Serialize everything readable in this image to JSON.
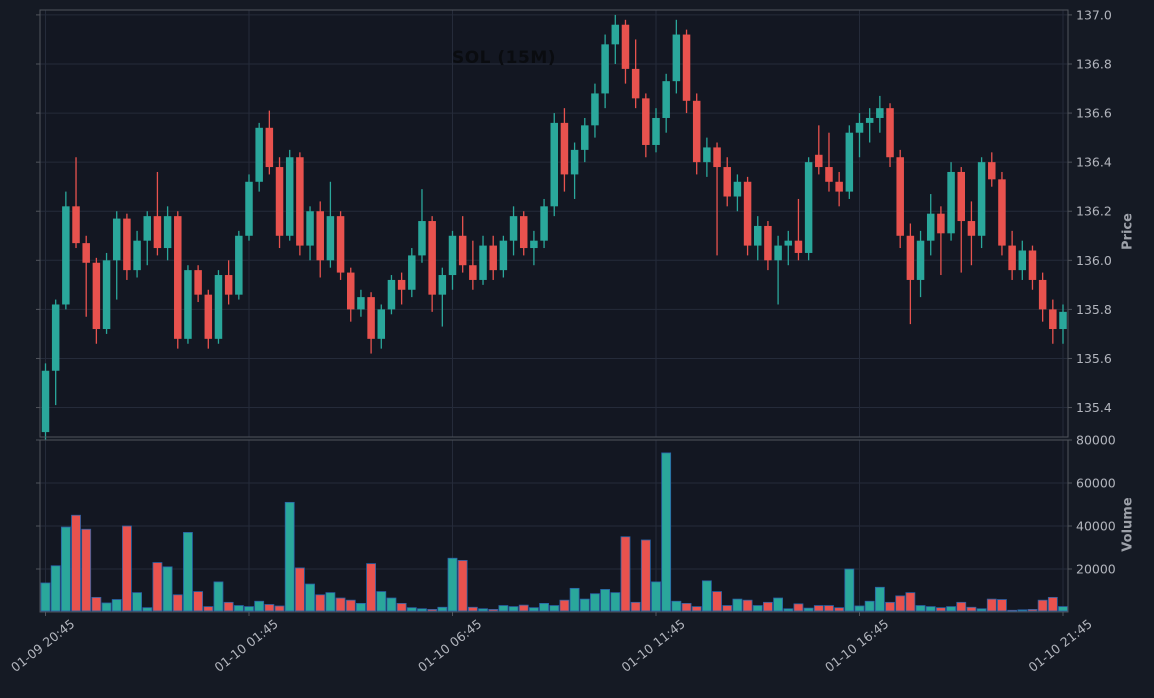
{
  "title": "SOL (15M)",
  "axes": {
    "price_label": "Price",
    "volume_label": "Volume"
  },
  "colors": {
    "background": "#151a24",
    "panel_background": "#131722",
    "up": "#2aa79b",
    "down": "#e8524e",
    "volume_bar_edge": "#2963a8",
    "grid": "#252b3a",
    "spine": "#50545c",
    "tick_label": "#b2b5bd",
    "axis_title": "#9da1a9",
    "title_color": "#0a0c10"
  },
  "chart_data": {
    "type": "candlestick+volume",
    "symbol": "SOL",
    "interval": "15M",
    "title": "SOL (15M)",
    "grid": true,
    "x_ticks": {
      "indices": [
        0,
        20,
        40,
        60,
        80,
        100
      ],
      "labels": [
        "01-09 20:45",
        "01-10 01:45",
        "01-10 06:45",
        "01-10 11:45",
        "01-10 16:45",
        "01-10 21:45"
      ]
    },
    "price_ticks": [
      135.4,
      135.6,
      135.8,
      136.0,
      136.2,
      136.4,
      136.6,
      136.8,
      137.0
    ],
    "price_tick_labels": [
      "135.4",
      "135.6",
      "135.8",
      "136.0",
      "136.2",
      "136.4",
      "136.6",
      "136.8",
      "137.0"
    ],
    "volume_ticks": [
      20000,
      40000,
      60000,
      80000
    ],
    "volume_tick_labels": [
      "20000",
      "40000",
      "60000",
      "80000"
    ],
    "price_ylim": [
      135.28,
      137.02
    ],
    "volume_ylim": [
      0,
      80000
    ],
    "columns": [
      "open",
      "high",
      "low",
      "close",
      "volume"
    ],
    "candles": [
      [
        135.3,
        135.58,
        135.27,
        135.55,
        13500
      ],
      [
        135.55,
        135.84,
        135.41,
        135.82,
        21500
      ],
      [
        135.82,
        136.28,
        135.8,
        136.22,
        39500
      ],
      [
        136.22,
        136.42,
        136.05,
        136.07,
        45000
      ],
      [
        136.07,
        136.1,
        135.77,
        135.99,
        38500
      ],
      [
        135.99,
        136.01,
        135.66,
        135.72,
        6800
      ],
      [
        135.72,
        136.03,
        135.7,
        136.0,
        4200
      ],
      [
        136.0,
        136.2,
        135.84,
        136.17,
        5800
      ],
      [
        136.17,
        136.19,
        135.92,
        135.96,
        40000
      ],
      [
        135.96,
        136.12,
        135.93,
        136.08,
        9000
      ],
      [
        136.08,
        136.2,
        135.98,
        136.18,
        2000
      ],
      [
        136.18,
        136.36,
        136.02,
        136.05,
        23000
      ],
      [
        136.05,
        136.22,
        136.0,
        136.18,
        21000
      ],
      [
        136.18,
        136.2,
        135.64,
        135.68,
        8000
      ],
      [
        135.68,
        135.98,
        135.66,
        135.96,
        37000
      ],
      [
        135.96,
        135.98,
        135.83,
        135.86,
        9500
      ],
      [
        135.86,
        135.88,
        135.64,
        135.68,
        2500
      ],
      [
        135.68,
        135.96,
        135.66,
        135.94,
        14000
      ],
      [
        135.94,
        136.0,
        135.82,
        135.86,
        4500
      ],
      [
        135.86,
        136.12,
        135.84,
        136.1,
        3000
      ],
      [
        136.1,
        136.35,
        136.08,
        136.32,
        2500
      ],
      [
        136.32,
        136.56,
        136.28,
        136.54,
        5000
      ],
      [
        136.54,
        136.61,
        136.35,
        136.38,
        3500
      ],
      [
        136.38,
        136.42,
        136.05,
        136.1,
        2800
      ],
      [
        136.1,
        136.45,
        136.08,
        136.42,
        51000
      ],
      [
        136.42,
        136.44,
        136.02,
        136.06,
        20500
      ],
      [
        136.06,
        136.22,
        136.0,
        136.2,
        13000
      ],
      [
        136.2,
        136.24,
        135.93,
        136.0,
        8000
      ],
      [
        136.0,
        136.32,
        135.97,
        136.18,
        9000
      ],
      [
        136.18,
        136.2,
        135.92,
        135.95,
        6500
      ],
      [
        135.95,
        135.97,
        135.75,
        135.8,
        5500
      ],
      [
        135.8,
        135.88,
        135.77,
        135.85,
        4000
      ],
      [
        135.85,
        135.87,
        135.62,
        135.68,
        22500
      ],
      [
        135.68,
        135.82,
        135.64,
        135.8,
        9500
      ],
      [
        135.8,
        135.94,
        135.78,
        135.92,
        6500
      ],
      [
        135.92,
        135.95,
        135.82,
        135.88,
        4000
      ],
      [
        135.88,
        136.05,
        135.85,
        136.02,
        2000
      ],
      [
        136.02,
        136.29,
        135.99,
        136.16,
        1500
      ],
      [
        136.16,
        136.18,
        135.79,
        135.86,
        1200
      ],
      [
        135.86,
        135.97,
        135.73,
        135.94,
        2200
      ],
      [
        135.94,
        136.12,
        135.88,
        136.1,
        25000
      ],
      [
        136.1,
        136.18,
        135.95,
        135.98,
        24000
      ],
      [
        135.98,
        136.08,
        135.88,
        135.92,
        2200
      ],
      [
        135.92,
        136.1,
        135.9,
        136.06,
        1500
      ],
      [
        136.06,
        136.1,
        135.92,
        135.96,
        1200
      ],
      [
        135.96,
        136.1,
        135.93,
        136.08,
        3000
      ],
      [
        136.08,
        136.22,
        136.02,
        136.18,
        2500
      ],
      [
        136.18,
        136.2,
        136.02,
        136.05,
        3200
      ],
      [
        136.05,
        136.12,
        135.98,
        136.08,
        2000
      ],
      [
        136.08,
        136.25,
        136.05,
        136.22,
        4000
      ],
      [
        136.22,
        136.6,
        136.18,
        136.56,
        3000
      ],
      [
        136.56,
        136.62,
        136.28,
        136.35,
        5500
      ],
      [
        136.35,
        136.48,
        136.25,
        136.45,
        11000
      ],
      [
        136.45,
        136.58,
        136.4,
        136.55,
        6000
      ],
      [
        136.55,
        136.72,
        136.5,
        136.68,
        8500
      ],
      [
        136.68,
        136.92,
        136.62,
        136.88,
        10500
      ],
      [
        136.88,
        137.0,
        136.8,
        136.96,
        9000
      ],
      [
        136.96,
        136.98,
        136.72,
        136.78,
        35000
      ],
      [
        136.78,
        136.9,
        136.62,
        136.66,
        4500
      ],
      [
        136.66,
        136.68,
        136.42,
        136.47,
        33500
      ],
      [
        136.47,
        136.62,
        136.44,
        136.58,
        14000
      ],
      [
        136.58,
        136.76,
        136.52,
        136.73,
        74000
      ],
      [
        136.73,
        136.98,
        136.68,
        136.92,
        5000
      ],
      [
        136.92,
        136.94,
        136.6,
        136.65,
        4000
      ],
      [
        136.65,
        136.68,
        136.35,
        136.4,
        2500
      ],
      [
        136.4,
        136.5,
        136.34,
        136.46,
        14500
      ],
      [
        136.46,
        136.48,
        136.02,
        136.38,
        9500
      ],
      [
        136.38,
        136.42,
        136.22,
        136.26,
        3000
      ],
      [
        136.26,
        136.35,
        136.2,
        136.32,
        6000
      ],
      [
        136.32,
        136.34,
        136.02,
        136.06,
        5500
      ],
      [
        136.06,
        136.18,
        136.0,
        136.14,
        3000
      ],
      [
        136.14,
        136.16,
        135.96,
        136.0,
        4500
      ],
      [
        136.0,
        136.1,
        135.82,
        136.06,
        6500
      ],
      [
        136.06,
        136.12,
        135.98,
        136.08,
        1500
      ],
      [
        136.08,
        136.25,
        136.0,
        136.03,
        3800
      ],
      [
        136.03,
        136.42,
        136.0,
        136.4,
        1800
      ],
      [
        136.43,
        136.55,
        136.35,
        136.38,
        3000
      ],
      [
        136.38,
        136.52,
        136.28,
        136.32,
        3000
      ],
      [
        136.32,
        136.36,
        136.22,
        136.28,
        2000
      ],
      [
        136.28,
        136.55,
        136.25,
        136.52,
        20000
      ],
      [
        136.52,
        136.6,
        136.42,
        136.56,
        2800
      ],
      [
        136.56,
        136.62,
        136.48,
        136.58,
        5000
      ],
      [
        136.58,
        136.67,
        136.52,
        136.62,
        11500
      ],
      [
        136.62,
        136.64,
        136.38,
        136.42,
        4500
      ],
      [
        136.42,
        136.45,
        136.05,
        136.1,
        7500
      ],
      [
        136.1,
        136.15,
        135.74,
        135.92,
        9000
      ],
      [
        135.92,
        136.12,
        135.85,
        136.08,
        3000
      ],
      [
        136.08,
        136.27,
        136.02,
        136.19,
        2500
      ],
      [
        136.19,
        136.22,
        135.94,
        136.11,
        2000
      ],
      [
        136.11,
        136.4,
        136.08,
        136.36,
        2500
      ],
      [
        136.36,
        136.38,
        135.95,
        136.16,
        4500
      ],
      [
        136.16,
        136.24,
        135.98,
        136.1,
        2200
      ],
      [
        136.1,
        136.42,
        136.05,
        136.4,
        1500
      ],
      [
        136.4,
        136.44,
        136.3,
        136.33,
        6000
      ],
      [
        136.33,
        136.36,
        136.02,
        136.06,
        5800
      ],
      [
        136.06,
        136.12,
        135.92,
        135.96,
        800
      ],
      [
        135.96,
        136.08,
        135.92,
        136.04,
        1000
      ],
      [
        136.04,
        136.06,
        135.88,
        135.92,
        1200
      ],
      [
        135.92,
        135.95,
        135.75,
        135.8,
        5500
      ],
      [
        135.8,
        135.84,
        135.66,
        135.72,
        6800
      ],
      [
        135.72,
        135.82,
        135.66,
        135.79,
        2500
      ]
    ]
  }
}
